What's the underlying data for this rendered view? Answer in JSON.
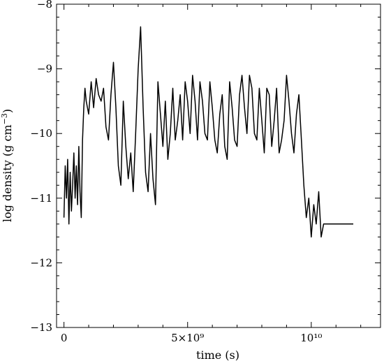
{
  "chart_data": {
    "type": "line",
    "title": "",
    "xlabel": "time (s)",
    "ylabel": "log density (g cm⁻³)",
    "ylabel_main": "log density (g cm",
    "ylabel_exp": "−3",
    "ylabel_close": ")",
    "xlim": [
      -300000000,
      12800000000
    ],
    "ylim": [
      -13,
      -8
    ],
    "grid": false,
    "x_ticks": [
      {
        "value": 0,
        "label": "0"
      },
      {
        "value": 5000000000,
        "label": "5×10⁹"
      },
      {
        "value": 10000000000,
        "label": "10¹⁰"
      }
    ],
    "y_ticks": [
      {
        "value": -8,
        "label": "−8"
      },
      {
        "value": -9,
        "label": "−9"
      },
      {
        "value": -10,
        "label": "−10"
      },
      {
        "value": -11,
        "label": "−11"
      },
      {
        "value": -12,
        "label": "−12"
      },
      {
        "value": -13,
        "label": "−13"
      }
    ],
    "series": [
      {
        "x": [
          0,
          50000000,
          100000000,
          150000000,
          200000000,
          250000000,
          300000000,
          350000000,
          400000000,
          450000000,
          500000000,
          550000000,
          600000000,
          650000000,
          700000000,
          750000000,
          800000000,
          850000000,
          900000000,
          1000000000,
          1100000000,
          1200000000,
          1300000000,
          1400000000,
          1500000000,
          1600000000,
          1700000000,
          1800000000,
          1900000000,
          2000000000,
          2100000000,
          2200000000,
          2300000000,
          2400000000,
          2500000000,
          2600000000,
          2700000000,
          2800000000,
          2900000000,
          3000000000,
          3100000000,
          3200000000,
          3300000000,
          3400000000,
          3500000000,
          3600000000,
          3700000000,
          3800000000,
          3900000000,
          4000000000,
          4100000000,
          4200000000,
          4300000000,
          4400000000,
          4500000000,
          4600000000,
          4700000000,
          4800000000,
          4900000000,
          5000000000,
          5100000000,
          5200000000,
          5300000000,
          5400000000,
          5500000000,
          5600000000,
          5700000000,
          5800000000,
          5900000000,
          6000000000,
          6100000000,
          6200000000,
          6300000000,
          6400000000,
          6500000000,
          6600000000,
          6700000000,
          6800000000,
          6900000000,
          7000000000,
          7100000000,
          7200000000,
          7300000000,
          7400000000,
          7500000000,
          7600000000,
          7700000000,
          7800000000,
          7900000000,
          8000000000,
          8100000000,
          8200000000,
          8300000000,
          8400000000,
          8500000000,
          8600000000,
          8700000000,
          8800000000,
          8900000000,
          9000000000,
          9100000000,
          9200000000,
          9300000000,
          9400000000,
          9500000000,
          9600000000,
          9700000000,
          9800000000,
          9900000000,
          10000000000,
          10100000000,
          10200000000,
          10300000000,
          10400000000,
          10500000000,
          11700000000
        ],
        "values": [
          -11.3,
          -10.5,
          -11.0,
          -10.4,
          -11.4,
          -10.6,
          -11.2,
          -10.8,
          -10.3,
          -11.0,
          -10.5,
          -11.1,
          -10.2,
          -10.9,
          -11.3,
          -10.1,
          -9.6,
          -9.3,
          -9.5,
          -9.7,
          -9.2,
          -9.6,
          -9.15,
          -9.4,
          -9.5,
          -9.3,
          -9.9,
          -10.1,
          -9.4,
          -8.9,
          -9.6,
          -10.5,
          -10.8,
          -9.5,
          -10.2,
          -10.7,
          -10.3,
          -10.9,
          -10.0,
          -9.0,
          -8.35,
          -9.6,
          -10.6,
          -10.9,
          -10.0,
          -10.7,
          -11.1,
          -9.2,
          -9.7,
          -10.2,
          -9.5,
          -10.4,
          -10.0,
          -9.3,
          -10.1,
          -9.8,
          -9.4,
          -10.1,
          -9.2,
          -9.5,
          -10.0,
          -9.1,
          -9.5,
          -10.1,
          -9.2,
          -9.5,
          -10.0,
          -10.1,
          -9.2,
          -9.6,
          -10.1,
          -10.3,
          -9.7,
          -9.4,
          -10.2,
          -10.4,
          -9.2,
          -9.6,
          -10.1,
          -10.2,
          -9.4,
          -9.1,
          -9.6,
          -10.0,
          -9.1,
          -9.3,
          -10.0,
          -10.1,
          -9.3,
          -9.8,
          -10.3,
          -9.3,
          -9.4,
          -10.2,
          -9.8,
          -9.3,
          -10.3,
          -10.1,
          -9.8,
          -9.1,
          -9.5,
          -10.0,
          -10.3,
          -9.7,
          -9.4,
          -10.1,
          -10.8,
          -11.3,
          -11.0,
          -11.6,
          -11.1,
          -11.4,
          -10.9,
          -11.6,
          -11.4,
          -11.4
        ]
      }
    ]
  }
}
